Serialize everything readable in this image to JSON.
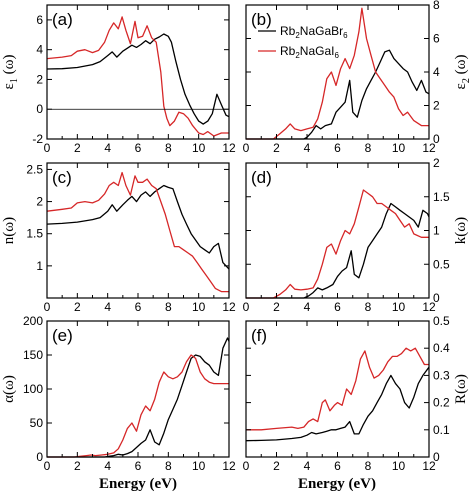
{
  "colors": {
    "Rb2NaGaBr6": "#000000",
    "Rb2NaGaI6": "#d62728"
  },
  "legend": {
    "placement": "top-left of panel (b)",
    "entries": [
      {
        "series": "Rb2NaGaBr6",
        "parts": [
          [
            "Rb",
            ""
          ],
          [
            "2",
            "sub"
          ],
          [
            "NaGaBr",
            ""
          ],
          [
            "6",
            "sub"
          ]
        ]
      },
      {
        "series": "Rb2NaGaI6",
        "parts": [
          [
            "Rb",
            ""
          ],
          [
            "2",
            "sub"
          ],
          [
            "NaGaI",
            ""
          ],
          [
            "6",
            "sub"
          ]
        ]
      }
    ]
  },
  "x_axis_title": "Energy (eV)",
  "chart_data": [
    {
      "type": "line",
      "panel": "(a)",
      "side": "left",
      "ylabel": "ε1 (ω)",
      "ylabel_main": "ε",
      "ylabel_sub": "1",
      "ylabel_tail": " (ω)",
      "xlim": [
        0,
        12
      ],
      "ylim": [
        -2,
        7
      ],
      "xticks": [
        0,
        2,
        4,
        6,
        8,
        10,
        12
      ],
      "yticks": [
        -2,
        0,
        2,
        4,
        6
      ],
      "series": [
        {
          "name": "Rb2NaGaBr6",
          "x": [
            0,
            1,
            2,
            3,
            3.5,
            4,
            4.3,
            4.6,
            5,
            5.3,
            5.6,
            5.9,
            6.2,
            6.5,
            6.8,
            7.1,
            7.4,
            7.7,
            8.0,
            8.2,
            8.5,
            8.8,
            9.1,
            9.4,
            9.7,
            10.0,
            10.3,
            10.6,
            10.9,
            11.2,
            11.5,
            11.8,
            12
          ],
          "y": [
            2.7,
            2.72,
            2.8,
            3.0,
            3.2,
            3.6,
            3.85,
            3.5,
            3.9,
            4.1,
            4.3,
            4.15,
            4.35,
            4.6,
            4.4,
            4.7,
            4.85,
            5.05,
            4.9,
            4.5,
            3.2,
            2.0,
            1.0,
            0.3,
            -0.3,
            -0.8,
            -1.0,
            -0.8,
            -0.3,
            1.0,
            0.3,
            -0.4,
            -0.5
          ]
        },
        {
          "name": "Rb2NaGaI6",
          "x": [
            0,
            1,
            1.6,
            2,
            2.5,
            3,
            3.4,
            3.8,
            4.1,
            4.4,
            4.7,
            4.95,
            5.2,
            5.5,
            5.8,
            6.0,
            6.3,
            6.6,
            6.9,
            7.2,
            7.5,
            7.7,
            7.9,
            8.1,
            8.4,
            8.7,
            9.0,
            9.3,
            9.6,
            10.0,
            10.3,
            10.6,
            11.0,
            11.5,
            12
          ],
          "y": [
            3.4,
            3.5,
            3.6,
            3.9,
            4.0,
            3.8,
            3.95,
            4.5,
            5.3,
            5.8,
            5.4,
            6.2,
            5.3,
            4.4,
            5.9,
            4.8,
            4.9,
            5.6,
            4.8,
            4.5,
            2.5,
            0.2,
            -0.6,
            -1.1,
            -0.8,
            -0.2,
            -0.3,
            -0.6,
            -1.1,
            -1.6,
            -1.7,
            -1.5,
            -1.8,
            -1.6,
            -1.6
          ]
        }
      ]
    },
    {
      "type": "line",
      "panel": "(b)",
      "side": "right",
      "ylabel": "ε2 (ω)",
      "ylabel_main": "ε",
      "ylabel_sub": "2",
      "ylabel_tail": " (ω)",
      "xlim": [
        0,
        12
      ],
      "ylim": [
        0,
        8
      ],
      "xticks": [
        0,
        2,
        4,
        6,
        8,
        10,
        12
      ],
      "yticks": [
        0,
        2,
        4,
        6,
        8
      ],
      "series": [
        {
          "name": "Rb2NaGaBr6",
          "x": [
            0,
            3.8,
            4.0,
            4.3,
            4.6,
            4.9,
            5.2,
            5.6,
            5.9,
            6.2,
            6.5,
            6.8,
            7.0,
            7.3,
            7.6,
            7.9,
            8.2,
            8.5,
            8.8,
            9.1,
            9.4,
            9.7,
            10.0,
            10.3,
            10.6,
            10.9,
            11.2,
            11.5,
            11.8,
            12
          ],
          "y": [
            0,
            0,
            0.1,
            0.4,
            0.8,
            0.6,
            0.8,
            0.9,
            1.6,
            1.9,
            2.2,
            3.5,
            1.6,
            1.3,
            2.3,
            3.0,
            3.5,
            4.0,
            4.6,
            5.2,
            5.3,
            4.8,
            4.5,
            4.2,
            4.0,
            3.4,
            2.9,
            3.5,
            2.8,
            2.7
          ]
        },
        {
          "name": "Rb2NaGaI6",
          "x": [
            0,
            1.8,
            2.2,
            2.6,
            2.9,
            3.2,
            3.6,
            4.0,
            4.4,
            4.7,
            5.0,
            5.3,
            5.6,
            5.9,
            6.2,
            6.5,
            6.8,
            7.1,
            7.4,
            7.6,
            7.9,
            8.2,
            8.5,
            8.8,
            9.1,
            9.4,
            9.7,
            10.0,
            10.3,
            10.6,
            11.0,
            11.5,
            12
          ],
          "y": [
            0,
            0,
            0.3,
            0.6,
            0.9,
            0.6,
            0.5,
            0.6,
            0.7,
            1.2,
            2.2,
            3.6,
            4.0,
            3.2,
            4.2,
            4.8,
            4.2,
            5.0,
            6.4,
            7.8,
            6.0,
            5.0,
            4.0,
            3.6,
            3.2,
            2.8,
            2.5,
            1.8,
            1.4,
            1.6,
            1.1,
            0.8,
            0.8
          ]
        }
      ]
    },
    {
      "type": "line",
      "panel": "(c)",
      "side": "left",
      "ylabel": "n(ω)",
      "xlim": [
        0,
        12
      ],
      "ylim": [
        0.5,
        2.6
      ],
      "xticks": [
        0,
        2,
        4,
        6,
        8,
        10,
        12
      ],
      "yticks": [
        1,
        1.5,
        2,
        2.5
      ],
      "series": [
        {
          "name": "Rb2NaGaBr6",
          "x": [
            0,
            1,
            2,
            3,
            3.5,
            4,
            4.3,
            4.6,
            5.0,
            5.3,
            5.6,
            5.9,
            6.2,
            6.5,
            6.8,
            7.1,
            7.4,
            7.7,
            8.0,
            8.3,
            8.6,
            8.9,
            9.2,
            9.5,
            9.8,
            10.1,
            10.4,
            10.7,
            11.0,
            11.3,
            11.6,
            12
          ],
          "y": [
            1.65,
            1.66,
            1.68,
            1.72,
            1.75,
            1.85,
            1.95,
            1.85,
            1.95,
            2.02,
            2.08,
            2.0,
            2.1,
            2.15,
            2.08,
            2.15,
            2.2,
            2.25,
            2.22,
            2.2,
            2.0,
            1.8,
            1.65,
            1.5,
            1.4,
            1.3,
            1.25,
            1.2,
            1.3,
            1.35,
            1.05,
            0.95
          ]
        },
        {
          "name": "Rb2NaGaI6",
          "x": [
            0,
            1,
            1.6,
            2,
            2.5,
            3,
            3.4,
            3.8,
            4.1,
            4.4,
            4.7,
            4.95,
            5.2,
            5.5,
            5.8,
            6.0,
            6.3,
            6.6,
            6.9,
            7.2,
            7.5,
            7.8,
            8.1,
            8.4,
            8.7,
            9.0,
            9.3,
            9.6,
            9.9,
            10.2,
            10.5,
            10.8,
            11.1,
            11.5,
            12
          ],
          "y": [
            1.85,
            1.88,
            1.9,
            1.98,
            2.0,
            1.98,
            2.02,
            2.12,
            2.25,
            2.3,
            2.25,
            2.45,
            2.25,
            2.1,
            2.4,
            2.3,
            2.3,
            2.35,
            2.25,
            2.2,
            2.0,
            1.8,
            1.55,
            1.3,
            1.3,
            1.25,
            1.2,
            1.15,
            1.05,
            0.95,
            0.85,
            0.75,
            0.65,
            0.6,
            0.6
          ]
        }
      ]
    },
    {
      "type": "line",
      "panel": "(d)",
      "side": "right",
      "ylabel": "k(ω)",
      "xlim": [
        0,
        12
      ],
      "ylim": [
        0,
        2
      ],
      "xticks": [
        0,
        2,
        4,
        6,
        8,
        10,
        12
      ],
      "yticks": [
        0,
        0.5,
        1,
        1.5,
        2
      ],
      "series": [
        {
          "name": "Rb2NaGaBr6",
          "x": [
            0,
            3.8,
            4.1,
            4.4,
            4.7,
            5.0,
            5.3,
            5.7,
            6.0,
            6.3,
            6.6,
            6.9,
            7.1,
            7.4,
            7.7,
            8.0,
            8.3,
            8.6,
            8.9,
            9.2,
            9.5,
            9.8,
            10.1,
            10.4,
            10.7,
            11.0,
            11.3,
            11.6,
            11.9,
            12
          ],
          "y": [
            0,
            0,
            0.03,
            0.08,
            0.15,
            0.12,
            0.15,
            0.2,
            0.32,
            0.4,
            0.45,
            0.7,
            0.35,
            0.3,
            0.5,
            0.75,
            0.85,
            0.95,
            1.05,
            1.25,
            1.4,
            1.35,
            1.3,
            1.25,
            1.2,
            1.15,
            1.05,
            1.3,
            1.25,
            1.2
          ]
        },
        {
          "name": "Rb2NaGaI6",
          "x": [
            0,
            1.8,
            2.2,
            2.6,
            2.9,
            3.2,
            3.6,
            4.0,
            4.4,
            4.7,
            5.0,
            5.3,
            5.6,
            5.9,
            6.2,
            6.5,
            6.8,
            7.1,
            7.4,
            7.7,
            8.0,
            8.3,
            8.6,
            8.9,
            9.2,
            9.5,
            9.8,
            10.1,
            10.4,
            10.7,
            11.0,
            11.5,
            12
          ],
          "y": [
            0,
            0,
            0.05,
            0.12,
            0.2,
            0.13,
            0.12,
            0.13,
            0.15,
            0.28,
            0.5,
            0.75,
            0.8,
            0.65,
            0.85,
            1.0,
            0.95,
            1.1,
            1.35,
            1.6,
            1.55,
            1.5,
            1.4,
            1.4,
            1.35,
            1.3,
            1.25,
            1.15,
            1.05,
            1.1,
            0.95,
            0.9,
            0.9
          ]
        }
      ]
    },
    {
      "type": "line",
      "panel": "(e)",
      "side": "left",
      "ylabel": "α(ω)",
      "xlim": [
        0,
        12
      ],
      "ylim": [
        0,
        200
      ],
      "xticks": [
        0,
        2,
        4,
        6,
        8,
        10,
        12
      ],
      "yticks": [
        0,
        50,
        100,
        150,
        200
      ],
      "series": [
        {
          "name": "Rb2NaGaBr6",
          "x": [
            0,
            3.8,
            4.1,
            4.4,
            4.7,
            5.0,
            5.3,
            5.6,
            5.9,
            6.2,
            6.5,
            6.8,
            7.1,
            7.4,
            7.7,
            8.0,
            8.3,
            8.6,
            8.9,
            9.2,
            9.5,
            9.8,
            10.1,
            10.4,
            10.7,
            11.0,
            11.3,
            11.6,
            11.9,
            12
          ],
          "y": [
            0,
            0,
            1,
            2,
            4,
            3,
            5,
            8,
            14,
            20,
            25,
            40,
            22,
            18,
            35,
            55,
            70,
            85,
            105,
            125,
            145,
            150,
            148,
            140,
            135,
            125,
            120,
            160,
            175,
            170
          ]
        },
        {
          "name": "Rb2NaGaI6",
          "x": [
            0,
            1.8,
            2.2,
            2.6,
            2.9,
            3.2,
            3.6,
            4.0,
            4.4,
            4.7,
            5.0,
            5.3,
            5.6,
            5.9,
            6.2,
            6.5,
            6.8,
            7.1,
            7.4,
            7.7,
            8.0,
            8.3,
            8.6,
            8.9,
            9.2,
            9.5,
            9.8,
            10.1,
            10.4,
            10.7,
            11.0,
            11.5,
            12
          ],
          "y": [
            0,
            0,
            1,
            2,
            3,
            2,
            3,
            4,
            6,
            12,
            25,
            42,
            50,
            38,
            62,
            75,
            68,
            85,
            110,
            125,
            118,
            115,
            118,
            125,
            140,
            150,
            145,
            125,
            115,
            110,
            108,
            108,
            108
          ]
        }
      ]
    },
    {
      "type": "line",
      "panel": "(f)",
      "side": "right",
      "ylabel": "R(ω)",
      "xlim": [
        0,
        12
      ],
      "ylim": [
        0,
        0.5
      ],
      "xticks": [
        0,
        2,
        4,
        6,
        8,
        10,
        12
      ],
      "yticks": [
        0,
        0.1,
        0.2,
        0.3,
        0.4,
        0.5
      ],
      "series": [
        {
          "name": "Rb2NaGaBr6",
          "x": [
            0,
            1,
            2,
            3,
            3.6,
            4.0,
            4.3,
            4.6,
            5.0,
            5.3,
            5.6,
            5.9,
            6.2,
            6.5,
            6.8,
            7.1,
            7.4,
            7.7,
            8.0,
            8.3,
            8.6,
            8.9,
            9.2,
            9.5,
            9.8,
            10.1,
            10.4,
            10.7,
            11.0,
            11.3,
            11.6,
            12
          ],
          "y": [
            0.06,
            0.061,
            0.063,
            0.068,
            0.072,
            0.08,
            0.09,
            0.085,
            0.09,
            0.095,
            0.1,
            0.1,
            0.105,
            0.11,
            0.13,
            0.085,
            0.085,
            0.12,
            0.15,
            0.17,
            0.2,
            0.23,
            0.27,
            0.3,
            0.27,
            0.25,
            0.2,
            0.18,
            0.22,
            0.27,
            0.3,
            0.33
          ]
        },
        {
          "name": "Rb2NaGaI6",
          "x": [
            0,
            1,
            2,
            3,
            3.4,
            3.8,
            4.1,
            4.4,
            4.7,
            5.0,
            5.2,
            5.5,
            5.8,
            6.0,
            6.3,
            6.6,
            6.9,
            7.2,
            7.5,
            7.8,
            8.1,
            8.4,
            8.7,
            9.0,
            9.3,
            9.6,
            9.9,
            10.2,
            10.5,
            10.8,
            11.1,
            11.4,
            11.7,
            12
          ],
          "y": [
            0.1,
            0.1,
            0.105,
            0.11,
            0.105,
            0.11,
            0.13,
            0.14,
            0.13,
            0.2,
            0.21,
            0.17,
            0.19,
            0.2,
            0.19,
            0.25,
            0.23,
            0.28,
            0.36,
            0.39,
            0.33,
            0.29,
            0.3,
            0.32,
            0.35,
            0.37,
            0.37,
            0.38,
            0.4,
            0.39,
            0.4,
            0.37,
            0.34,
            0.34
          ]
        }
      ]
    }
  ]
}
